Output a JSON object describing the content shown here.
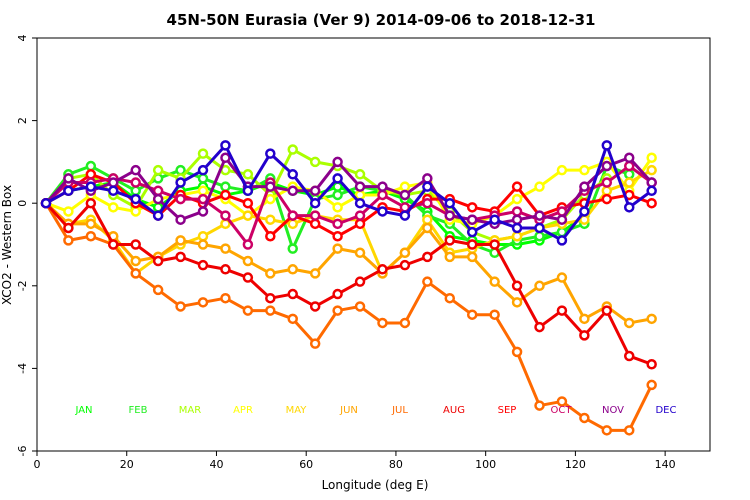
{
  "chart_data": {
    "type": "line",
    "title": "45N-50N Eurasia (Ver 9)   2014-09-06 to 2018-12-31",
    "xlabel": "Longitude (deg E)",
    "ylabel": "XCO2 - Western Box",
    "xlim": [
      0,
      150
    ],
    "ylim": [
      -6,
      4
    ],
    "xticks": [
      0,
      20,
      40,
      60,
      80,
      100,
      120,
      140
    ],
    "yticks": [
      -6,
      -4,
      -2,
      0,
      2,
      4
    ],
    "grid": false,
    "legend_placement": "bottom, inside plot, as a row of colored month labels",
    "series": [
      {
        "name": "JAN",
        "color": "#00ff00",
        "x": [
          2,
          7,
          12,
          17,
          22,
          27,
          32,
          37,
          42,
          47,
          52,
          57,
          62,
          67,
          72,
          77,
          82,
          87,
          92,
          97,
          102,
          107,
          112,
          117,
          122,
          127,
          132,
          137
        ],
        "y": [
          0,
          0.3,
          0.4,
          0.5,
          0.1,
          -0.1,
          0.3,
          0.4,
          0.2,
          0.3,
          0.5,
          0.3,
          0.2,
          0.4,
          0.2,
          0.3,
          0.1,
          -0.2,
          -0.8,
          -0.9,
          -1.0,
          -1.0,
          -0.9,
          -0.7,
          -0.3,
          null,
          null,
          null
        ]
      },
      {
        "name": "FEB",
        "color": "#22ee22",
        "x": [
          2,
          7,
          12,
          17,
          22,
          27,
          32,
          37,
          42,
          47,
          52,
          57,
          62,
          67,
          72,
          77,
          82,
          87,
          92,
          97,
          102,
          107,
          112,
          117,
          122,
          127,
          132,
          137
        ],
        "y": [
          0,
          0.7,
          0.9,
          0.6,
          0.3,
          0.6,
          0.8,
          0.6,
          0.4,
          0.3,
          0.6,
          -1.1,
          0.1,
          0.2,
          0.4,
          0.3,
          0.2,
          -0.3,
          -0.5,
          -1.0,
          -1.2,
          -0.9,
          -0.8,
          -0.7,
          -0.5,
          0.9,
          0.7,
          null
        ]
      },
      {
        "name": "MAR",
        "color": "#aaff00",
        "x": [
          2,
          7,
          12,
          17,
          22,
          27,
          32,
          37,
          42,
          47,
          52,
          57,
          62,
          67,
          72,
          77,
          82,
          87,
          92,
          97,
          102,
          107,
          112,
          117,
          122,
          127,
          132,
          137
        ],
        "y": [
          0,
          0.6,
          0.7,
          0.2,
          -0.1,
          0.8,
          0.6,
          1.2,
          0.8,
          0.7,
          0.2,
          1.3,
          1.0,
          0.9,
          0.7,
          0.3,
          0.2,
          0.3,
          -0.2,
          -0.7,
          -0.9,
          -0.8,
          -0.6,
          -0.4,
          0.2,
          0.6,
          null,
          null
        ]
      },
      {
        "name": "APR",
        "color": "#ffff00",
        "x": [
          2,
          7,
          12,
          17,
          22,
          27,
          32,
          37,
          42,
          47,
          52,
          57,
          62,
          67,
          72,
          77,
          82,
          87,
          92,
          97,
          102,
          107,
          112,
          117,
          122,
          127,
          132,
          137
        ],
        "y": [
          0,
          -0.2,
          0.2,
          -0.1,
          -0.2,
          0.1,
          0.2,
          0.3,
          0.1,
          -0.3,
          0.1,
          0.4,
          0.3,
          -0.1,
          0.2,
          0.2,
          0.4,
          0.5,
          -0.4,
          -0.5,
          -0.3,
          0.1,
          0.4,
          0.8,
          0.8,
          1.0,
          0.3,
          1.1
        ]
      },
      {
        "name": "MAY",
        "color": "#ffd700",
        "x": [
          2,
          7,
          12,
          17,
          22,
          27,
          32,
          37,
          42,
          47,
          52,
          57,
          62,
          67,
          72,
          77,
          82,
          87,
          92,
          97,
          102,
          107,
          112,
          117,
          122,
          127,
          132,
          137
        ],
        "y": [
          0,
          -0.5,
          -0.4,
          -0.9,
          -1.7,
          -1.3,
          -1.0,
          -0.8,
          -0.5,
          -0.3,
          -0.4,
          -0.5,
          -0.3,
          -0.4,
          -0.4,
          -1.7,
          -1.2,
          -0.4,
          -1.2,
          -1.1,
          -0.9,
          -0.8,
          -0.6,
          -0.5,
          -0.4,
          0.3,
          0.5,
          0.8
        ]
      },
      {
        "name": "JUN",
        "color": "#ffa500",
        "x": [
          2,
          7,
          12,
          17,
          22,
          27,
          32,
          37,
          42,
          47,
          52,
          57,
          62,
          67,
          72,
          77,
          82,
          87,
          92,
          97,
          102,
          107,
          112,
          117,
          122,
          127,
          132,
          137
        ],
        "y": [
          0,
          -0.5,
          -0.5,
          -0.8,
          -1.4,
          -1.3,
          -0.9,
          -1.0,
          -1.1,
          -1.4,
          -1.7,
          -1.6,
          -1.7,
          -1.1,
          -1.2,
          -1.7,
          -1.2,
          -0.6,
          -1.3,
          -1.3,
          -1.9,
          -2.4,
          -2.0,
          -1.8,
          -2.8,
          -2.5,
          -2.9,
          -2.8
        ]
      },
      {
        "name": "JUL",
        "color": "#ff6a00",
        "x": [
          2,
          7,
          12,
          17,
          22,
          27,
          32,
          37,
          42,
          47,
          52,
          57,
          62,
          67,
          72,
          77,
          82,
          87,
          92,
          97,
          102,
          107,
          112,
          117,
          122,
          127,
          132,
          137
        ],
        "y": [
          0,
          -0.9,
          -0.8,
          -1.0,
          -1.7,
          -2.1,
          -2.5,
          -2.4,
          -2.3,
          -2.6,
          -2.6,
          -2.8,
          -3.4,
          -2.6,
          -2.5,
          -2.9,
          -2.9,
          -1.9,
          -2.3,
          -2.7,
          -2.7,
          -3.6,
          -4.9,
          -4.8,
          -5.2,
          -5.5,
          -5.5,
          -4.4
        ]
      },
      {
        "name": "AUG",
        "color": "#ee0000",
        "x": [
          2,
          7,
          12,
          17,
          22,
          27,
          32,
          37,
          42,
          47,
          52,
          57,
          62,
          67,
          72,
          77,
          82,
          87,
          92,
          97,
          102,
          107,
          112,
          117,
          122,
          127,
          132,
          137
        ],
        "y": [
          0,
          -0.6,
          0,
          -1.0,
          -1.0,
          -1.4,
          -1.3,
          -1.5,
          -1.6,
          -1.8,
          -2.3,
          -2.2,
          -2.5,
          -2.2,
          -1.9,
          -1.6,
          -1.5,
          -1.3,
          -0.9,
          -1.0,
          -1.0,
          -2.0,
          -3.0,
          -2.6,
          -3.2,
          -2.6,
          -3.7,
          -3.9
        ]
      },
      {
        "name": "SEP",
        "color": "#ff0000",
        "x": [
          2,
          7,
          12,
          17,
          22,
          27,
          32,
          37,
          42,
          47,
          52,
          57,
          62,
          67,
          72,
          77,
          82,
          87,
          92,
          97,
          102,
          107,
          112,
          117,
          122,
          127,
          132,
          137
        ],
        "y": [
          0,
          0.3,
          0.7,
          0.5,
          0,
          -0.3,
          0.2,
          0,
          0.2,
          0,
          -0.8,
          -0.3,
          -0.5,
          -0.8,
          -0.5,
          -0.1,
          -0.2,
          0.1,
          0.1,
          -0.1,
          -0.2,
          0.4,
          -0.3,
          -0.1,
          0,
          0.1,
          0.2,
          0
        ]
      },
      {
        "name": "OCT",
        "color": "#cc0066",
        "x": [
          2,
          7,
          12,
          17,
          22,
          27,
          32,
          37,
          42,
          47,
          52,
          57,
          62,
          67,
          72,
          77,
          82,
          87,
          92,
          97,
          102,
          107,
          112,
          117,
          122,
          127,
          132,
          137
        ],
        "y": [
          0,
          0.5,
          0.5,
          0.6,
          0.5,
          0.3,
          0.1,
          0.1,
          -0.3,
          -1.0,
          0.5,
          -0.3,
          -0.3,
          -0.5,
          -0.3,
          0.2,
          -0.1,
          0,
          -0.3,
          -0.4,
          -0.3,
          -0.2,
          -0.4,
          -0.2,
          0.3,
          0.5,
          0.9,
          0.5
        ]
      },
      {
        "name": "NOV",
        "color": "#8b008b",
        "x": [
          2,
          7,
          12,
          17,
          22,
          27,
          32,
          37,
          42,
          47,
          52,
          57,
          62,
          67,
          72,
          77,
          82,
          87,
          92,
          97,
          102,
          107,
          112,
          117,
          122,
          127,
          132,
          137
        ],
        "y": [
          0,
          0.6,
          0.3,
          0.5,
          0.8,
          0.1,
          -0.4,
          -0.2,
          1.1,
          0.4,
          0.4,
          0.3,
          0.3,
          1.0,
          0.4,
          0.4,
          0.2,
          0.6,
          -0.3,
          -0.4,
          -0.5,
          -0.4,
          -0.3,
          -0.4,
          0.4,
          0.9,
          1.1,
          0.5
        ]
      },
      {
        "name": "DEC",
        "color": "#2200cc",
        "x": [
          2,
          7,
          12,
          17,
          22,
          27,
          32,
          37,
          42,
          47,
          52,
          57,
          62,
          67,
          72,
          77,
          82,
          87,
          92,
          97,
          102,
          107,
          112,
          117,
          122,
          127,
          132,
          137
        ],
        "y": [
          0,
          0.3,
          0.4,
          0.3,
          0.1,
          -0.3,
          0.5,
          0.8,
          1.4,
          0.3,
          1.2,
          0.7,
          0,
          0.6,
          0,
          -0.2,
          -0.3,
          0.4,
          0,
          -0.7,
          -0.4,
          -0.6,
          -0.6,
          -0.9,
          -0.2,
          1.4,
          -0.1,
          0.3
        ]
      }
    ]
  }
}
